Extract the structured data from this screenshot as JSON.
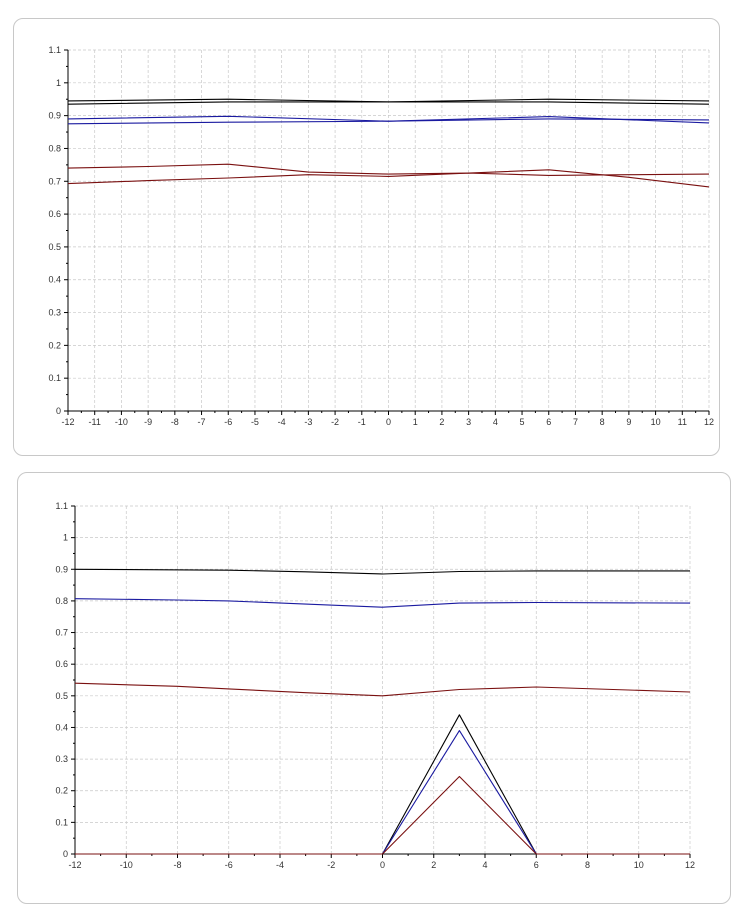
{
  "colors": {
    "black": "#000000",
    "blue": "#1a1aa0",
    "red": "#7a1010",
    "grid": "#c8c8c8",
    "axis": "#000000"
  },
  "chart_data": [
    {
      "type": "line",
      "title": "",
      "xlabel": "",
      "ylabel": "",
      "xlim": [
        -12,
        12
      ],
      "ylim": [
        0,
        1.1
      ],
      "grid": true,
      "x_ticks": [
        -12,
        -11,
        -10,
        -9,
        -8,
        -7,
        -6,
        -5,
        -4,
        -3,
        -2,
        -1,
        0,
        1,
        2,
        3,
        4,
        5,
        6,
        7,
        8,
        9,
        10,
        11,
        12
      ],
      "y_ticks": [
        0,
        0.1,
        0.2,
        0.3,
        0.4,
        0.5,
        0.6,
        0.7,
        0.8,
        0.9,
        1,
        1.1
      ],
      "series": [
        {
          "color": "#000000",
          "x": [
            -12,
            -6,
            0,
            6,
            12
          ],
          "y": [
            0.945,
            0.95,
            0.942,
            0.95,
            0.945
          ]
        },
        {
          "color": "#000000",
          "x": [
            -12,
            -6,
            0,
            6,
            12
          ],
          "y": [
            0.935,
            0.942,
            0.942,
            0.942,
            0.935
          ]
        },
        {
          "color": "#1a1aa0",
          "x": [
            -12,
            -6,
            0,
            6,
            12
          ],
          "y": [
            0.89,
            0.898,
            0.883,
            0.897,
            0.878
          ]
        },
        {
          "color": "#1a1aa0",
          "x": [
            -12,
            -6,
            0,
            6,
            12
          ],
          "y": [
            0.875,
            0.88,
            0.883,
            0.89,
            0.887
          ]
        },
        {
          "color": "#7a1010",
          "x": [
            -12,
            -9,
            -6,
            -3,
            0,
            3,
            6,
            9,
            12
          ],
          "y": [
            0.74,
            0.745,
            0.752,
            0.728,
            0.722,
            0.725,
            0.735,
            0.712,
            0.683
          ]
        },
        {
          "color": "#7a1010",
          "x": [
            -12,
            -9,
            -6,
            -3,
            0,
            3,
            6,
            9,
            12
          ],
          "y": [
            0.693,
            0.702,
            0.71,
            0.72,
            0.715,
            0.725,
            0.718,
            0.72,
            0.722
          ]
        }
      ]
    },
    {
      "type": "line",
      "title": "",
      "xlabel": "",
      "ylabel": "",
      "xlim": [
        -12,
        12
      ],
      "ylim": [
        0,
        1.1
      ],
      "grid": true,
      "x_ticks": [
        -12,
        -10,
        -8,
        -6,
        -4,
        -2,
        0,
        2,
        4,
        6,
        8,
        10,
        12
      ],
      "y_ticks": [
        0,
        0.1,
        0.2,
        0.3,
        0.4,
        0.5,
        0.6,
        0.7,
        0.8,
        0.9,
        1,
        1.1
      ],
      "series": [
        {
          "color": "#000000",
          "x": [
            -12,
            -6,
            -3,
            0,
            3,
            6,
            12
          ],
          "y": [
            0.9,
            0.897,
            0.892,
            0.885,
            0.893,
            0.895,
            0.895
          ]
        },
        {
          "color": "#1a1aa0",
          "x": [
            -12,
            -8,
            -6,
            -3,
            0,
            3,
            6,
            12
          ],
          "y": [
            0.807,
            0.803,
            0.8,
            0.79,
            0.78,
            0.793,
            0.795,
            0.793
          ]
        },
        {
          "color": "#7a1010",
          "x": [
            -12,
            -8,
            -6,
            -3,
            0,
            3,
            6,
            9,
            12
          ],
          "y": [
            0.54,
            0.53,
            0.522,
            0.51,
            0.5,
            0.52,
            0.528,
            0.52,
            0.512
          ]
        },
        {
          "color": "#000000",
          "x": [
            -12,
            0,
            3,
            6,
            12
          ],
          "y": [
            0,
            0,
            0.44,
            0,
            0
          ]
        },
        {
          "color": "#1a1aa0",
          "x": [
            -12,
            0,
            3,
            6,
            12
          ],
          "y": [
            0,
            0,
            0.39,
            0,
            0
          ]
        },
        {
          "color": "#7a1010",
          "x": [
            -12,
            0,
            3,
            6,
            12
          ],
          "y": [
            0,
            0,
            0.245,
            0,
            0
          ]
        }
      ]
    }
  ]
}
